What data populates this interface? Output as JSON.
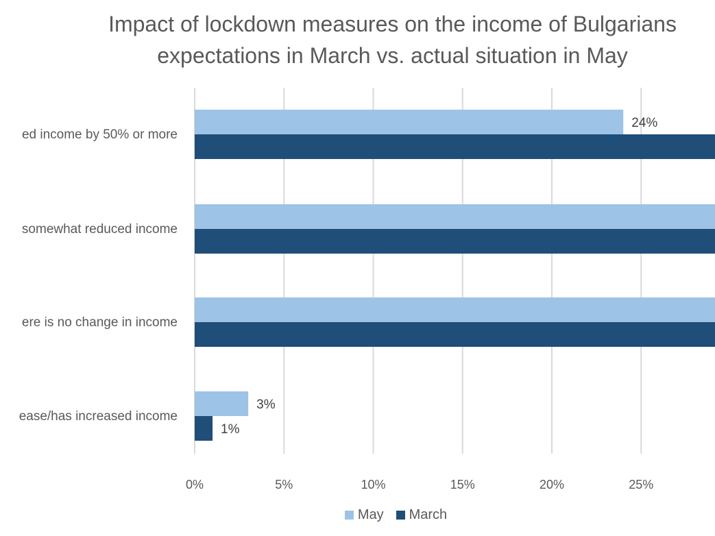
{
  "chart_data": {
    "type": "bar",
    "orientation": "horizontal",
    "title_lines": [
      "Impact of lockdown measures on the income of Bulgarians",
      "expectations in March vs. actual situation in May"
    ],
    "categories": [
      "ed income by 50% or more",
      "somewhat reduced income",
      "ere is no change in income",
      "ease/has increased income"
    ],
    "series": [
      {
        "name": "May",
        "color": "#9DC3E6",
        "values": [
          24,
          30,
          30,
          3
        ],
        "data_labels": [
          "24%",
          "",
          "",
          "3%"
        ]
      },
      {
        "name": "March",
        "color": "#1F4E79",
        "values": [
          30,
          30,
          30,
          1
        ],
        "data_labels": [
          "",
          "",
          "",
          "1%"
        ]
      }
    ],
    "x_ticks": [
      "0%",
      "5%",
      "10%",
      "15%",
      "20%",
      "25%"
    ],
    "xlim": [
      0,
      29.2
    ],
    "grid": true,
    "legend_position": "bottom"
  }
}
